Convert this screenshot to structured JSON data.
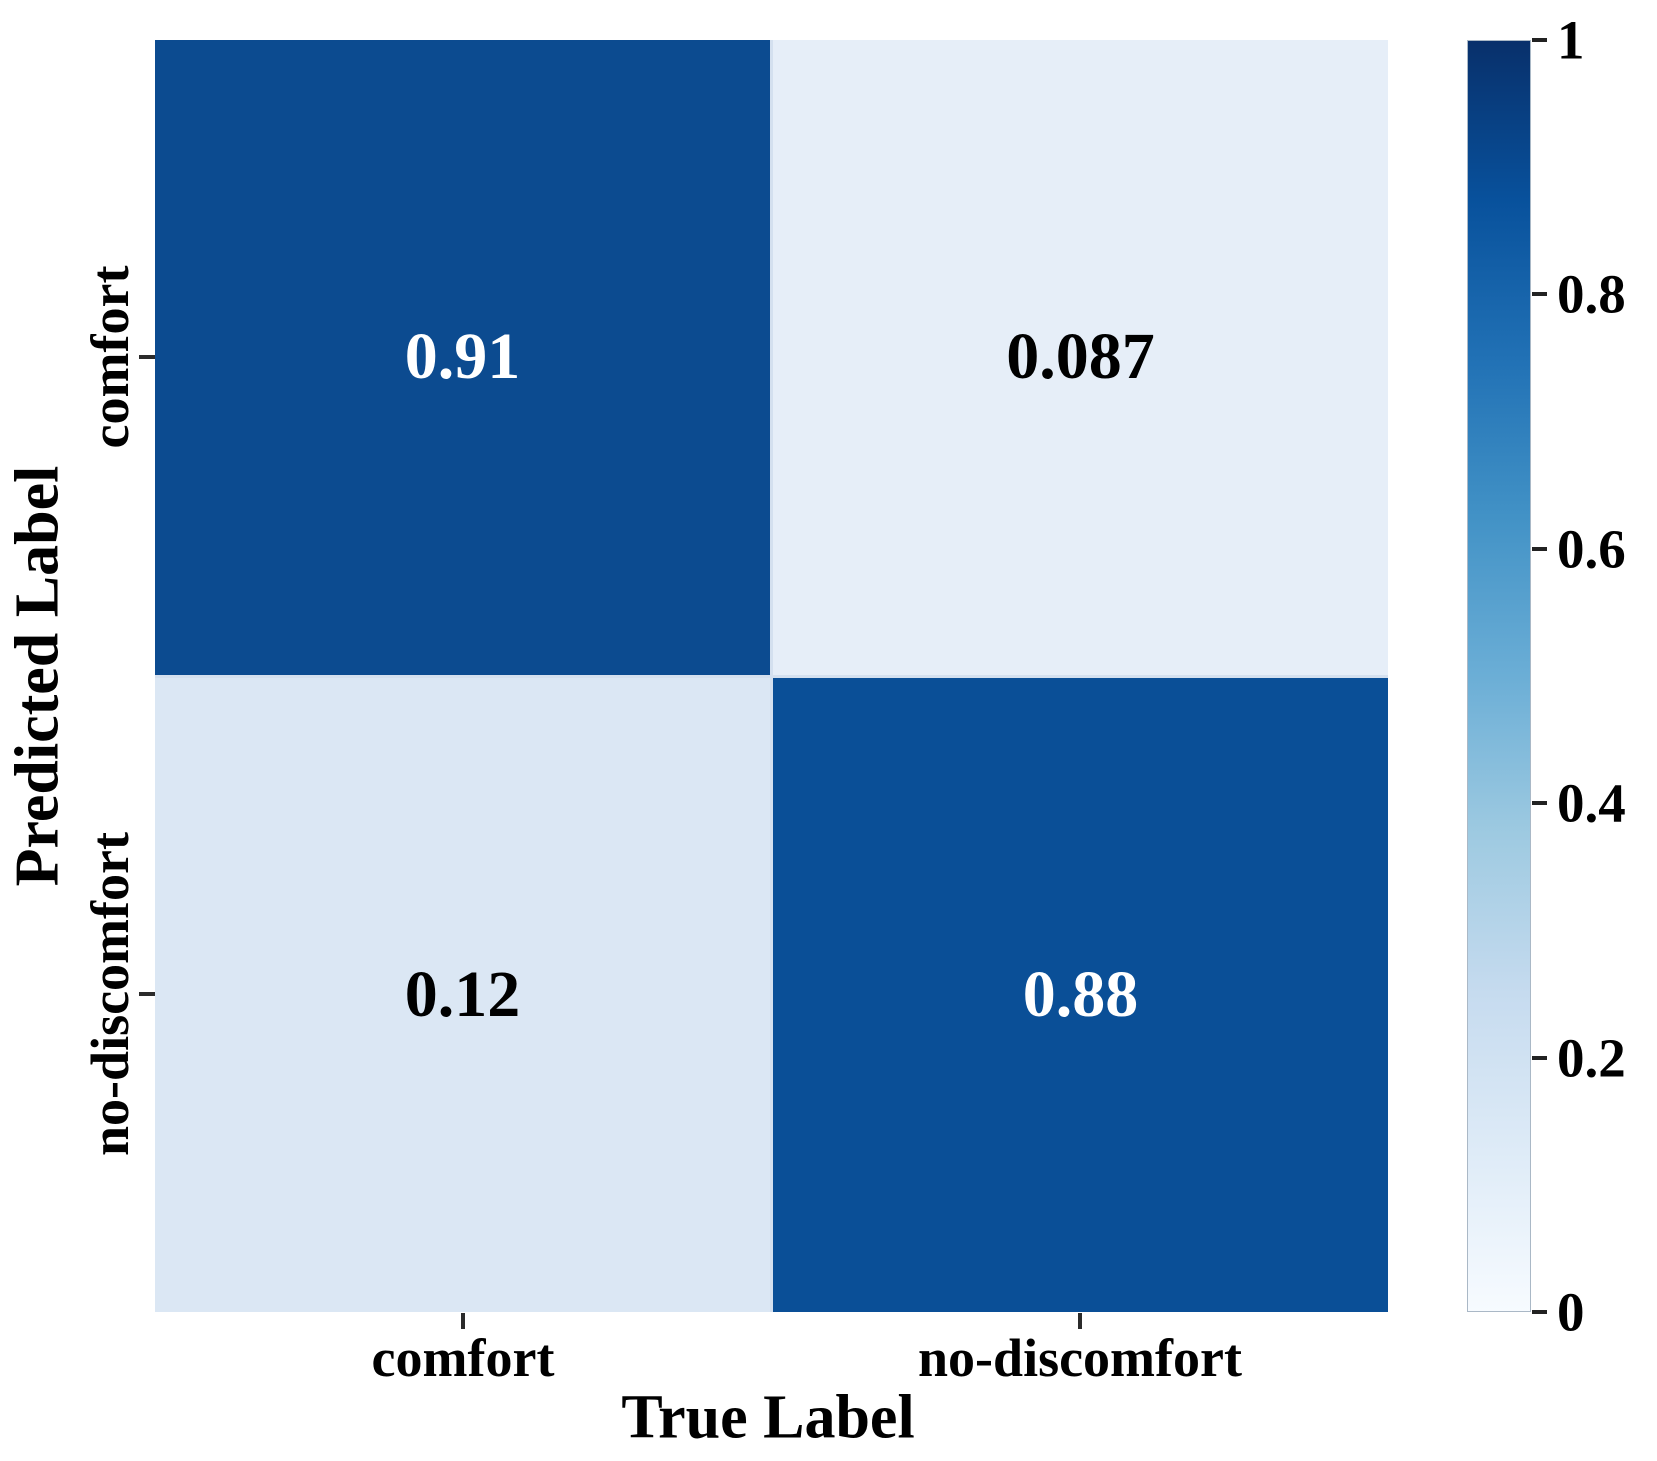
{
  "chart_data": {
    "type": "heatmap",
    "subtype": "confusion-matrix",
    "title": "",
    "xlabel": "True Label",
    "ylabel": "Predicted Label",
    "x_categories": [
      "comfort",
      "no-discomfort"
    ],
    "y_categories": [
      "comfort",
      "no-discomfort"
    ],
    "matrix": [
      [
        0.91,
        0.087
      ],
      [
        0.12,
        0.88
      ]
    ],
    "cell_text": [
      [
        "0.91",
        "0.087"
      ],
      [
        "0.12",
        "0.88"
      ]
    ],
    "value_range": [
      0,
      1
    ],
    "colormap": "Blues",
    "grid": false,
    "legend_position": "none",
    "colorbar_ticks": [
      {
        "label": "1",
        "value": 1.0
      },
      {
        "label": "0.8",
        "value": 0.8
      },
      {
        "label": "0.6",
        "value": 0.6
      },
      {
        "label": "0.4",
        "value": 0.4
      },
      {
        "label": "0.2",
        "value": 0.2
      },
      {
        "label": "0",
        "value": 0.0
      }
    ]
  },
  "colors": {
    "cell_0_0": "#0c4b90",
    "cell_0_1": "#e6eef8",
    "cell_1_0": "#dbe7f4",
    "cell_1_1": "#0a4f97",
    "cell_separator": "#d4e0ef",
    "annotation_on_dark": "#ffffff",
    "annotation_on_light": "#000000",
    "tick_color": "#2b2b2b",
    "colormap_stops": [
      "#f7fbff",
      "#deebf7",
      "#c6dbef",
      "#9ecae1",
      "#6baed6",
      "#4292c6",
      "#2171b5",
      "#08519c",
      "#08306b"
    ]
  }
}
